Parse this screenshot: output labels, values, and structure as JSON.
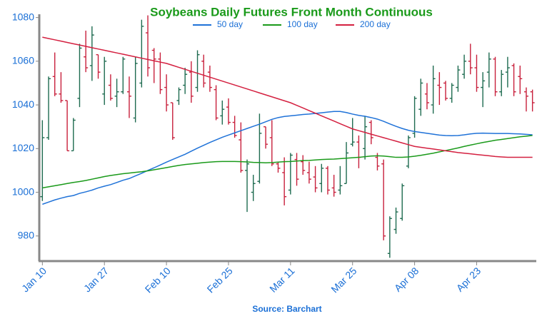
{
  "chart_data": {
    "type": "ohlc",
    "title": "Soybeans Daily Futures Front Month Continuous",
    "source": "Source: Barchart",
    "categories": [
      "Jan 10",
      null,
      null,
      null,
      null,
      null,
      null,
      null,
      null,
      null,
      "Jan 27",
      null,
      null,
      null,
      null,
      null,
      null,
      null,
      null,
      null,
      "Feb 10",
      null,
      null,
      null,
      null,
      null,
      null,
      null,
      null,
      null,
      "Feb 25",
      null,
      null,
      null,
      null,
      null,
      null,
      null,
      null,
      null,
      "Mar 11",
      null,
      null,
      null,
      null,
      null,
      null,
      null,
      null,
      null,
      "Mar 25",
      null,
      null,
      null,
      null,
      null,
      null,
      null,
      null,
      null,
      "Apr 08",
      null,
      null,
      null,
      null,
      null,
      null,
      null,
      null,
      null,
      "Apr 23",
      null,
      null,
      null,
      null,
      null,
      null,
      null,
      null,
      null
    ],
    "open": [
      998,
      1025,
      1053,
      1045,
      1042,
      1019,
      1043,
      1062,
      1058,
      1063,
      1045,
      1049,
      1044,
      1046,
      1046,
      1034,
      1050,
      1073,
      1065,
      1061,
      1048,
      1041,
      1042,
      1049,
      1055,
      1048,
      1060,
      1055,
      1047,
      1035,
      1039,
      1032,
      1024,
      1010,
      1000,
      1005,
      1030,
      1025,
      1013,
      1009,
      1001,
      1015,
      1014,
      1009,
      1007,
      1004,
      1011,
      1002,
      1001,
      1004,
      1022,
      1023,
      1020,
      1032,
      1016,
      1013,
      972,
      983,
      988,
      1012,
      1027,
      1038,
      1045,
      1040,
      1049,
      1050,
      1043,
      1048,
      1054,
      1060,
      1057,
      1048,
      1055,
      1061,
      1046,
      1055,
      1058,
      1053,
      1046,
      1046
    ],
    "high": [
      1033,
      1053,
      1064,
      1055,
      1042,
      1034,
      1068,
      1074,
      1076,
      1063,
      1062,
      1054,
      1052,
      1062,
      1053,
      1062,
      1079,
      1081,
      1066,
      1064,
      1054,
      1041,
      1048,
      1057,
      1060,
      1065,
      1063,
      1058,
      1049,
      1042,
      1043,
      1035,
      1032,
      1015,
      1008,
      1036,
      1030,
      1033,
      1014,
      1016,
      1018,
      1018,
      1017,
      1014,
      1012,
      1013,
      1012,
      1008,
      1012,
      1023,
      1034,
      1026,
      1035,
      1033,
      1018,
      1015,
      989,
      993,
      1004,
      1026,
      1044,
      1052,
      1050,
      1058,
      1055,
      1051,
      1050,
      1058,
      1063,
      1068,
      1063,
      1055,
      1064,
      1062,
      1056,
      1062,
      1059,
      1058,
      1048,
      1047
    ],
    "low": [
      996,
      1024,
      1044,
      1041,
      1019,
      1019,
      1039,
      1055,
      1051,
      1052,
      1040,
      1042,
      1039,
      1045,
      1034,
      1032,
      1048,
      1053,
      1050,
      1045,
      1037,
      1024,
      1040,
      1045,
      1041,
      1046,
      1048,
      1046,
      1033,
      1031,
      1031,
      1025,
      1009,
      991,
      996,
      1004,
      1020,
      1012,
      1009,
      994,
      999,
      1003,
      1008,
      1004,
      1000,
      1000,
      999,
      998,
      999,
      1004,
      1021,
      1011,
      1015,
      1022,
      1010,
      978,
      970,
      981,
      987,
      1011,
      1025,
      1035,
      1038,
      1036,
      1040,
      1042,
      1041,
      1046,
      1052,
      1054,
      1046,
      1039,
      1048,
      1044,
      1044,
      1048,
      1044,
      1045,
      1037,
      1037
    ],
    "close": [
      1025,
      1052,
      1045,
      1042,
      1019,
      1033,
      1066,
      1057,
      1072,
      1055,
      1060,
      1043,
      1046,
      1061,
      1044,
      1059,
      1076,
      1057,
      1061,
      1047,
      1040,
      1025,
      1047,
      1054,
      1044,
      1063,
      1050,
      1048,
      1034,
      1038,
      1032,
      1026,
      1010,
      1013,
      1004,
      1027,
      1022,
      1013,
      1011,
      998,
      1017,
      1006,
      1010,
      1006,
      1002,
      1011,
      1001,
      1000,
      1003,
      1018,
      1023,
      1016,
      1030,
      1025,
      1012,
      980,
      988,
      991,
      1003,
      1025,
      1043,
      1050,
      1041,
      1052,
      1048,
      1043,
      1049,
      1056,
      1060,
      1057,
      1048,
      1051,
      1061,
      1046,
      1054,
      1057,
      1046,
      1052,
      1044,
      1041
    ],
    "up_color": "#1e6b50",
    "down_color": "#c8203c",
    "series": [
      {
        "name": "50 day",
        "color": "#1f72d8",
        "values": [
          994.5,
          995.5,
          996.5,
          997.3,
          998,
          998.5,
          999.5,
          1000.2,
          1001,
          1002,
          1002.8,
          1003.5,
          1004.5,
          1005.5,
          1006.3,
          1007.5,
          1008.7,
          1010,
          1011.2,
          1012.5,
          1013.8,
          1015,
          1016.2,
          1017.4,
          1018.8,
          1020.2,
          1021.5,
          1022.8,
          1024,
          1025.2,
          1026.2,
          1027.2,
          1028.2,
          1029.2,
          1030.2,
          1031.2,
          1032.3,
          1033.4,
          1034.2,
          1034.7,
          1035,
          1035.3,
          1035.6,
          1035.8,
          1036.1,
          1036.4,
          1036.7,
          1037,
          1037,
          1036.5,
          1035.8,
          1035.2,
          1034.8,
          1034.2,
          1033.5,
          1032.5,
          1031.3,
          1030.2,
          1029.2,
          1028.4,
          1027.8,
          1027.4,
          1027,
          1026.6,
          1026.2,
          1026,
          1025.9,
          1026,
          1026.3,
          1026.7,
          1027,
          1027.1,
          1027,
          1026.9,
          1026.9,
          1026.9,
          1026.8,
          1026.7,
          1026.5,
          1026.3
        ]
      },
      {
        "name": "100 day",
        "color": "#1a9a1a",
        "values": [
          1002,
          1002.5,
          1003,
          1003.5,
          1004,
          1004.5,
          1004.9,
          1005.4,
          1006,
          1006.6,
          1007.2,
          1007.7,
          1008.1,
          1008.5,
          1008.8,
          1009.1,
          1009.4,
          1009.8,
          1010.3,
          1010.8,
          1011.3,
          1011.8,
          1012.3,
          1012.7,
          1013,
          1013.3,
          1013.6,
          1013.8,
          1014,
          1014.1,
          1014.1,
          1014.1,
          1014,
          1013.9,
          1013.7,
          1013.6,
          1013.5,
          1013.6,
          1013.8,
          1014,
          1014.1,
          1014.3,
          1014.5,
          1014.6,
          1014.8,
          1015,
          1015.1,
          1015.2,
          1015.4,
          1015.6,
          1015.8,
          1016,
          1016.3,
          1016.6,
          1016.7,
          1016.6,
          1016.3,
          1016,
          1016,
          1016.2,
          1016.5,
          1016.9,
          1017.4,
          1017.9,
          1018.5,
          1019.1,
          1019.7,
          1020.3,
          1021,
          1021.6,
          1022.2,
          1022.8,
          1023.3,
          1023.8,
          1024.2,
          1024.6,
          1025,
          1025.4,
          1025.7,
          1026
        ]
      },
      {
        "name": "200 day",
        "color": "#d42040",
        "values": [
          1071,
          1070.4,
          1069.8,
          1069.2,
          1068.6,
          1068,
          1067.4,
          1066.8,
          1066.2,
          1065.6,
          1065,
          1064.4,
          1063.8,
          1063.2,
          1062.6,
          1062,
          1061.4,
          1060.8,
          1060.2,
          1059.6,
          1059,
          1058.1,
          1057.2,
          1056.3,
          1055.4,
          1054.5,
          1053.6,
          1052.7,
          1051.8,
          1050.9,
          1050,
          1049.1,
          1048.2,
          1047.3,
          1046.4,
          1045.5,
          1044.6,
          1043.7,
          1042.8,
          1041.9,
          1041,
          1039.8,
          1038.6,
          1037.4,
          1036.2,
          1035,
          1033.8,
          1032.6,
          1031.4,
          1030.2,
          1029,
          1028.2,
          1027.4,
          1026.6,
          1025.8,
          1025,
          1024.2,
          1023.4,
          1022.6,
          1021.8,
          1021,
          1020.6,
          1020.2,
          1019.8,
          1019.4,
          1019,
          1018.6,
          1018.2,
          1017.9,
          1017.6,
          1017.3,
          1017,
          1016.7,
          1016.4,
          1016.2,
          1016,
          1016,
          1016,
          1016,
          1016
        ]
      }
    ],
    "ylim": [
      968.5,
      1081.5
    ],
    "yticks": [
      980,
      1000,
      1020,
      1040,
      1060,
      1080
    ],
    "grid": false
  }
}
